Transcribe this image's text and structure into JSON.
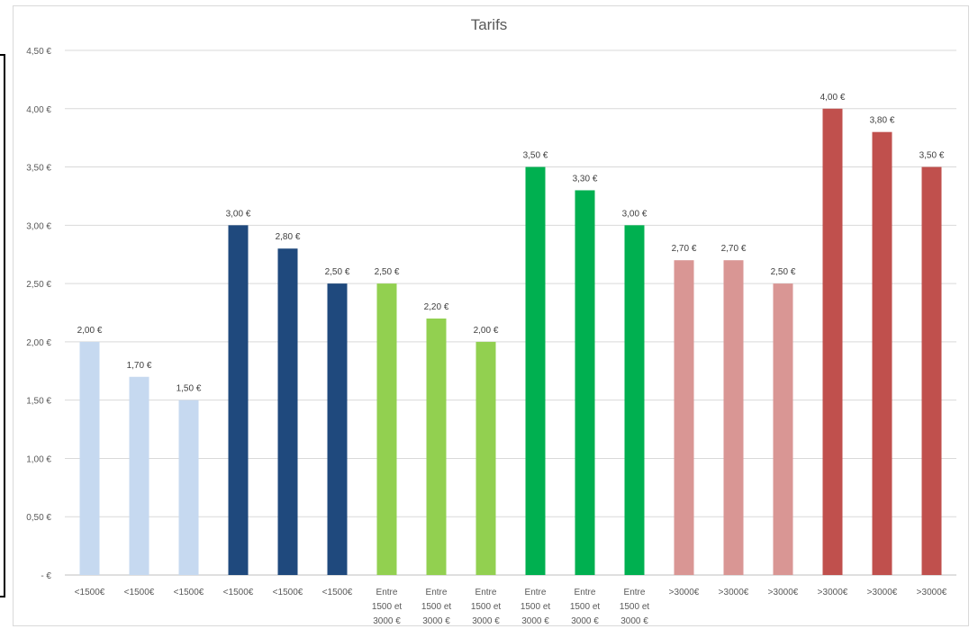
{
  "chart_data": {
    "type": "bar",
    "title": "Tarifs",
    "ylim": [
      0,
      4.5
    ],
    "grid": true,
    "yticks": [
      {
        "value": 0,
        "label": "-  €"
      },
      {
        "value": 0.5,
        "label": "0,50 €"
      },
      {
        "value": 1,
        "label": "1,00 €"
      },
      {
        "value": 1.5,
        "label": "1,50 €"
      },
      {
        "value": 2,
        "label": "2,00 €"
      },
      {
        "value": 2.5,
        "label": "2,50 €"
      },
      {
        "value": 3,
        "label": "3,00 €"
      },
      {
        "value": 3.5,
        "label": "3,50 €"
      },
      {
        "value": 4,
        "label": "4,00 €"
      },
      {
        "value": 4.5,
        "label": "4,50 €"
      }
    ],
    "bars": [
      {
        "category": "<1500€",
        "value": 2.0,
        "label": "2,00 €",
        "color": "#c6d9f0"
      },
      {
        "category": "<1500€",
        "value": 1.7,
        "label": "1,70 €",
        "color": "#c6d9f0"
      },
      {
        "category": "<1500€",
        "value": 1.5,
        "label": "1,50 €",
        "color": "#c6d9f0"
      },
      {
        "category": "<1500€",
        "value": 3.0,
        "label": "3,00 €",
        "color": "#1f497d"
      },
      {
        "category": "<1500€",
        "value": 2.8,
        "label": "2,80 €",
        "color": "#1f497d"
      },
      {
        "category": "<1500€",
        "value": 2.5,
        "label": "2,50 €",
        "color": "#1f497d"
      },
      {
        "category": [
          "Entre",
          "1500 et",
          "3000 €"
        ],
        "value": 2.5,
        "label": "2,50 €",
        "color": "#92d050"
      },
      {
        "category": [
          "Entre",
          "1500 et",
          "3000 €"
        ],
        "value": 2.2,
        "label": "2,20 €",
        "color": "#92d050"
      },
      {
        "category": [
          "Entre",
          "1500 et",
          "3000 €"
        ],
        "value": 2.0,
        "label": "2,00 €",
        "color": "#92d050"
      },
      {
        "category": [
          "Entre",
          "1500 et",
          "3000 €"
        ],
        "value": 3.5,
        "label": "3,50 €",
        "color": "#00b050"
      },
      {
        "category": [
          "Entre",
          "1500 et",
          "3000 €"
        ],
        "value": 3.3,
        "label": "3,30 €",
        "color": "#00b050"
      },
      {
        "category": [
          "Entre",
          "1500 et",
          "3000 €"
        ],
        "value": 3.0,
        "label": "3,00 €",
        "color": "#00b050"
      },
      {
        "category": ">3000€",
        "value": 2.7,
        "label": "2,70 €",
        "color": "#d99694"
      },
      {
        "category": ">3000€",
        "value": 2.7,
        "label": "2,70 €",
        "color": "#d99694"
      },
      {
        "category": ">3000€",
        "value": 2.5,
        "label": "2,50 €",
        "color": "#d99694"
      },
      {
        "category": ">3000€",
        "value": 4.0,
        "label": "4,00 €",
        "color": "#c0504d"
      },
      {
        "category": ">3000€",
        "value": 3.8,
        "label": "3,80 €",
        "color": "#c0504d"
      },
      {
        "category": ">3000€",
        "value": 3.5,
        "label": "3,50 €",
        "color": "#c0504d"
      }
    ]
  }
}
